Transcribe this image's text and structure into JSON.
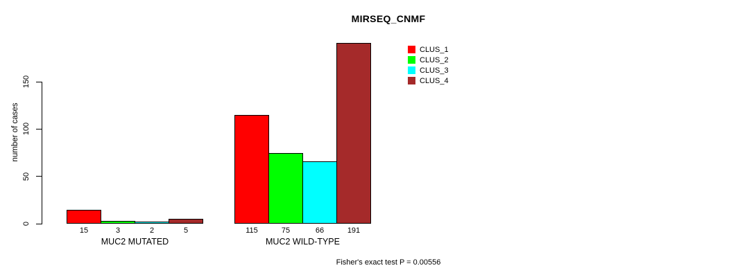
{
  "chart_data": {
    "type": "bar",
    "title": "MIRSEQ_CNMF",
    "ylabel": "number of cases",
    "xlabel": "",
    "categories": [
      "MUC2 MUTATED",
      "MUC2 WILD-TYPE"
    ],
    "series": [
      {
        "name": "CLUS_1",
        "color": "#ff0000",
        "values": [
          15,
          115
        ]
      },
      {
        "name": "CLUS_2",
        "color": "#00ff00",
        "values": [
          3,
          75
        ]
      },
      {
        "name": "CLUS_3",
        "color": "#00ffff",
        "values": [
          2,
          66
        ]
      },
      {
        "name": "CLUS_4",
        "color": "#a52a2a",
        "values": [
          5,
          191
        ]
      }
    ],
    "yticks": [
      0,
      50,
      100,
      150
    ],
    "ylim": [
      0,
      150
    ],
    "grid": false,
    "bar_value_labels_shown": true,
    "legend_position": "top-right",
    "annotation": "Fisher's exact test P = 0.00556"
  },
  "colors": {
    "background": "#ffffff",
    "axis": "#000000",
    "text": "#000000",
    "bar_border": "#000000"
  }
}
